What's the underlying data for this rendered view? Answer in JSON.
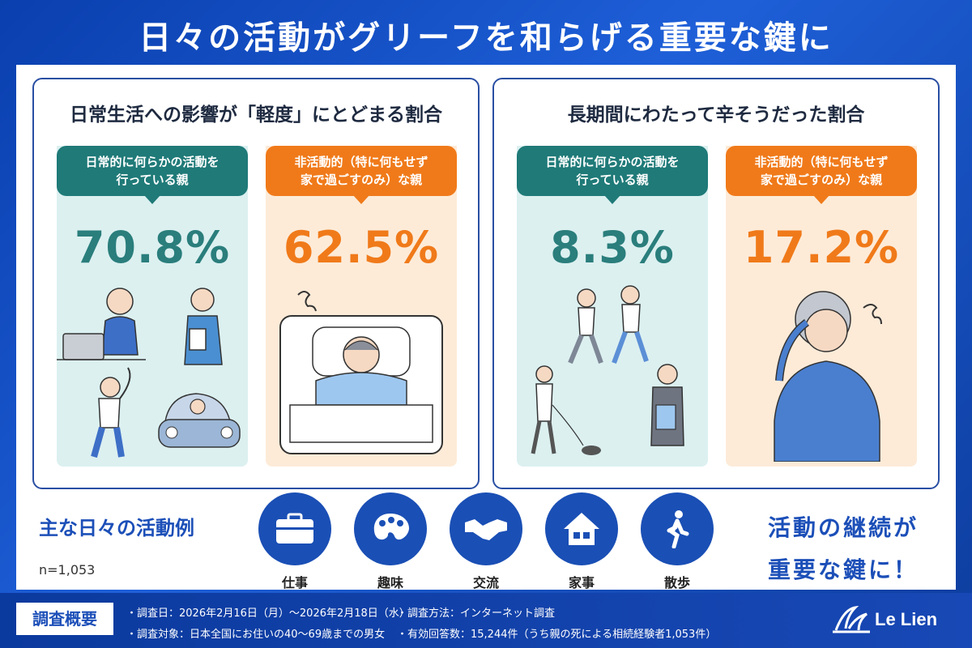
{
  "title": "日々の活動がグリーフを和らげる重要な鍵に",
  "panels": [
    {
      "title": "日常生活への影響が「軽度」にとどまる割合",
      "active": {
        "label_l1": "日常的に何らかの活動を",
        "label_l2": "行っている親",
        "value": "70.8%"
      },
      "inactive": {
        "label_l1": "非活動的（特に何もせず",
        "label_l2": "家で過ごすのみ）な親",
        "value": "62.5%"
      }
    },
    {
      "title": "長期間にわたって辛そうだった割合",
      "active": {
        "label_l1": "日常的に何らかの活動を",
        "label_l2": "行っている親",
        "value": "8.3%"
      },
      "inactive": {
        "label_l1": "非活動的（特に何もせず",
        "label_l2": "家で過ごすのみ）な親",
        "value": "17.2%"
      }
    }
  ],
  "examples": {
    "heading": "主な日々の活動例",
    "n": "n=1,053",
    "items": [
      {
        "label": "仕事",
        "icon": "briefcase-icon"
      },
      {
        "label": "趣味",
        "icon": "palette-icon"
      },
      {
        "label": "交流",
        "icon": "handshake-icon"
      },
      {
        "label": "家事",
        "icon": "house-icon"
      },
      {
        "label": "散歩",
        "icon": "walking-icon"
      }
    ]
  },
  "slogan": {
    "line1": "活動の継続が",
    "line2": "重要な鍵に！"
  },
  "footer": {
    "badge": "調査概要",
    "date": "・調査日：2026年2月16日（月）〜2026年2月18日（水）",
    "target": "・調査対象：日本全国にお住いの40〜69歳までの男女",
    "method": "・調査方法：インターネット調査",
    "responses": "・有効回答数：15,244件（うち親の死による相続経験者1,053件）",
    "brand": "Le Lien"
  },
  "colors": {
    "teal": "#1f7a78",
    "orange": "#f07a1a",
    "blue": "#1a4fb5"
  }
}
